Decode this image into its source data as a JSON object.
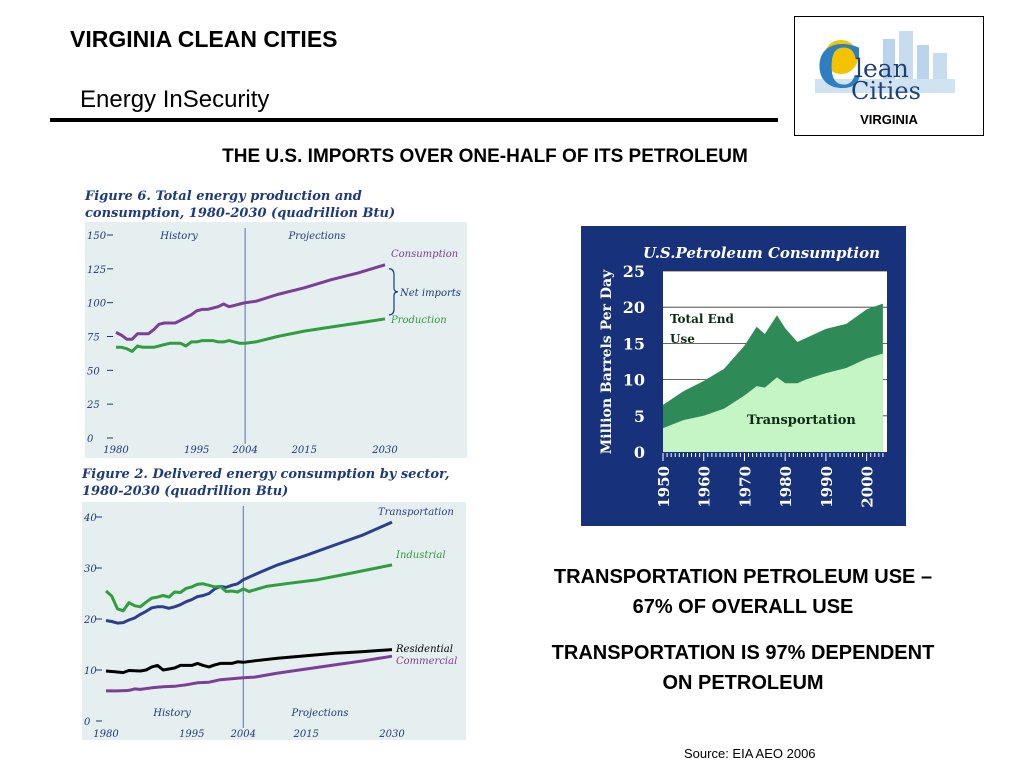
{
  "header": {
    "title": "VIRGINIA CLEAN CITIES",
    "subtitle": "Energy InSecurity"
  },
  "logo": {
    "wordmark_lines": [
      "lean",
      "Cities"
    ],
    "caption": "VIRGINIA"
  },
  "headline": "THE U.S. IMPORTS OVER ONE-HALF OF ITS PETROLEUM",
  "statements": [
    "TRANSPORTATION PETROLEUM USE – 67% OF OVERALL USE",
    "TRANSPORTATION IS 97% DEPENDENT ON PETROLEUM"
  ],
  "source": "Source: EIA AEO 2006",
  "chart_data": [
    {
      "type": "line",
      "title": "Figure 6. Total energy production and consumption, 1980-2030 (quadrillion Btu)",
      "ylim": [
        0,
        150
      ],
      "y_ticks": [
        0,
        25,
        50,
        75,
        100,
        125,
        150
      ],
      "x_ticks": [
        1980,
        1995,
        2004,
        2015,
        2030
      ],
      "divider_year": 2004,
      "region_labels": [
        "History",
        "Projections"
      ],
      "bracket_label": "Net imports",
      "series": [
        {
          "name": "Consumption",
          "color": "#7b3f98",
          "points": [
            [
              1980,
              78
            ],
            [
              1981,
              76
            ],
            [
              1982,
              73
            ],
            [
              1983,
              73
            ],
            [
              1984,
              77
            ],
            [
              1985,
              77
            ],
            [
              1986,
              77
            ],
            [
              1987,
              80
            ],
            [
              1988,
              84
            ],
            [
              1989,
              85
            ],
            [
              1990,
              85
            ],
            [
              1991,
              85
            ],
            [
              1992,
              87
            ],
            [
              1993,
              89
            ],
            [
              1994,
              91
            ],
            [
              1995,
              94
            ],
            [
              1996,
              95
            ],
            [
              1997,
              95
            ],
            [
              1998,
              96
            ],
            [
              1999,
              97
            ],
            [
              2000,
              99
            ],
            [
              2001,
              97
            ],
            [
              2002,
              98
            ],
            [
              2003,
              99
            ],
            [
              2004,
              100
            ],
            [
              2006,
              101
            ],
            [
              2010,
              106
            ],
            [
              2015,
              111
            ],
            [
              2020,
              117
            ],
            [
              2025,
              122
            ],
            [
              2030,
              128
            ]
          ]
        },
        {
          "name": "Production",
          "color": "#2e9e3e",
          "points": [
            [
              1980,
              67
            ],
            [
              1981,
              67
            ],
            [
              1982,
              66
            ],
            [
              1983,
              64
            ],
            [
              1984,
              68
            ],
            [
              1985,
              67
            ],
            [
              1986,
              67
            ],
            [
              1987,
              67
            ],
            [
              1988,
              68
            ],
            [
              1989,
              69
            ],
            [
              1990,
              70
            ],
            [
              1991,
              70
            ],
            [
              1992,
              70
            ],
            [
              1993,
              68
            ],
            [
              1994,
              71
            ],
            [
              1995,
              71
            ],
            [
              1996,
              72
            ],
            [
              1997,
              72
            ],
            [
              1998,
              72
            ],
            [
              1999,
              71
            ],
            [
              2000,
              71
            ],
            [
              2001,
              72
            ],
            [
              2002,
              71
            ],
            [
              2003,
              70
            ],
            [
              2004,
              70
            ],
            [
              2006,
              71
            ],
            [
              2010,
              75
            ],
            [
              2015,
              79
            ],
            [
              2020,
              82
            ],
            [
              2025,
              85
            ],
            [
              2030,
              88
            ]
          ]
        }
      ]
    },
    {
      "type": "line",
      "title": "Figure 2. Delivered energy consumption by sector, 1980-2030 (quadrillion Btu)",
      "ylim": [
        0,
        40
      ],
      "y_ticks": [
        0,
        10,
        20,
        30,
        40
      ],
      "x_ticks": [
        1980,
        1995,
        2004,
        2015,
        2030
      ],
      "divider_year": 2004,
      "region_labels": [
        "History",
        "Projections"
      ],
      "series": [
        {
          "name": "Transportation",
          "color": "#2d3e8e",
          "points": [
            [
              1980,
              19.7
            ],
            [
              1981,
              19.5
            ],
            [
              1982,
              19.2
            ],
            [
              1983,
              19.3
            ],
            [
              1984,
              19.8
            ],
            [
              1985,
              20.2
            ],
            [
              1986,
              20.9
            ],
            [
              1987,
              21.5
            ],
            [
              1988,
              22.2
            ],
            [
              1989,
              22.4
            ],
            [
              1990,
              22.4
            ],
            [
              1991,
              22.1
            ],
            [
              1992,
              22.4
            ],
            [
              1993,
              22.8
            ],
            [
              1994,
              23.4
            ],
            [
              1995,
              23.8
            ],
            [
              1996,
              24.4
            ],
            [
              1997,
              24.6
            ],
            [
              1998,
              25.0
            ],
            [
              1999,
              25.9
            ],
            [
              2000,
              26.4
            ],
            [
              2001,
              26.2
            ],
            [
              2002,
              26.6
            ],
            [
              2003,
              26.9
            ],
            [
              2004,
              27.7
            ],
            [
              2007,
              29.2
            ],
            [
              2010,
              30.6
            ],
            [
              2015,
              32.5
            ],
            [
              2020,
              34.5
            ],
            [
              2025,
              36.5
            ],
            [
              2030,
              39.0
            ]
          ]
        },
        {
          "name": "Industrial",
          "color": "#2e9e3e",
          "points": [
            [
              1980,
              25.5
            ],
            [
              1981,
              24.5
            ],
            [
              1982,
              22.0
            ],
            [
              1983,
              21.6
            ],
            [
              1984,
              23.2
            ],
            [
              1985,
              22.6
            ],
            [
              1986,
              22.4
            ],
            [
              1987,
              23.3
            ],
            [
              1988,
              24.1
            ],
            [
              1989,
              24.3
            ],
            [
              1990,
              24.6
            ],
            [
              1991,
              24.3
            ],
            [
              1992,
              25.3
            ],
            [
              1993,
              25.2
            ],
            [
              1994,
              26.0
            ],
            [
              1995,
              26.3
            ],
            [
              1996,
              26.8
            ],
            [
              1997,
              26.9
            ],
            [
              1998,
              26.6
            ],
            [
              1999,
              26.3
            ],
            [
              2000,
              26.4
            ],
            [
              2001,
              25.4
            ],
            [
              2002,
              25.5
            ],
            [
              2003,
              25.3
            ],
            [
              2004,
              25.9
            ],
            [
              2005,
              25.4
            ],
            [
              2008,
              26.4
            ],
            [
              2012,
              27.0
            ],
            [
              2017,
              27.7
            ],
            [
              2022,
              28.8
            ],
            [
              2030,
              30.6
            ]
          ]
        },
        {
          "name": "Residential",
          "color": "#000000",
          "points": [
            [
              1980,
              9.8
            ],
            [
              1982,
              9.6
            ],
            [
              1983,
              9.5
            ],
            [
              1984,
              9.9
            ],
            [
              1986,
              9.8
            ],
            [
              1987,
              10.0
            ],
            [
              1988,
              10.6
            ],
            [
              1989,
              10.9
            ],
            [
              1990,
              10.0
            ],
            [
              1992,
              10.4
            ],
            [
              1993,
              10.9
            ],
            [
              1995,
              10.9
            ],
            [
              1996,
              11.3
            ],
            [
              1997,
              10.9
            ],
            [
              1998,
              10.6
            ],
            [
              1999,
              11.0
            ],
            [
              2000,
              11.3
            ],
            [
              2002,
              11.3
            ],
            [
              2003,
              11.6
            ],
            [
              2004,
              11.5
            ],
            [
              2006,
              11.8
            ],
            [
              2010,
              12.3
            ],
            [
              2015,
              12.8
            ],
            [
              2020,
              13.3
            ],
            [
              2025,
              13.6
            ],
            [
              2030,
              14.0
            ]
          ]
        },
        {
          "name": "Commercial",
          "color": "#7b3f98",
          "points": [
            [
              1980,
              5.9
            ],
            [
              1982,
              5.9
            ],
            [
              1984,
              6.0
            ],
            [
              1985,
              6.3
            ],
            [
              1986,
              6.2
            ],
            [
              1988,
              6.5
            ],
            [
              1990,
              6.7
            ],
            [
              1992,
              6.8
            ],
            [
              1994,
              7.1
            ],
            [
              1996,
              7.5
            ],
            [
              1998,
              7.6
            ],
            [
              2000,
              8.1
            ],
            [
              2002,
              8.3
            ],
            [
              2004,
              8.5
            ],
            [
              2006,
              8.6
            ],
            [
              2010,
              9.4
            ],
            [
              2015,
              10.2
            ],
            [
              2020,
              11.0
            ],
            [
              2025,
              11.8
            ],
            [
              2030,
              12.7
            ]
          ]
        }
      ]
    },
    {
      "type": "area",
      "title": "U.S.Petroleum Consumption",
      "ylabel": "Million Barrels Per Day",
      "ylim": [
        0,
        25
      ],
      "y_ticks": [
        0,
        5,
        10,
        15,
        20,
        25
      ],
      "x_ticks": [
        1950,
        1960,
        1970,
        1980,
        1990,
        2000
      ],
      "xlim": [
        1950,
        2005
      ],
      "grid": true,
      "series": [
        {
          "name": "Total End Use",
          "color": "#2e8b57",
          "x": [
            1950,
            1955,
            1960,
            1965,
            1970,
            1973,
            1975,
            1978,
            1980,
            1983,
            1985,
            1990,
            1995,
            2000,
            2004
          ],
          "values": [
            6.5,
            8.4,
            9.8,
            11.5,
            14.7,
            17.3,
            16.3,
            18.9,
            17.1,
            15.2,
            15.7,
            17.0,
            17.7,
            19.7,
            20.5
          ]
        },
        {
          "name": "Transportation",
          "color": "#c5f5c5",
          "x": [
            1950,
            1955,
            1960,
            1965,
            1970,
            1973,
            1975,
            1978,
            1980,
            1983,
            1985,
            1990,
            1995,
            2000,
            2004
          ],
          "values": [
            3.3,
            4.4,
            5.0,
            6.0,
            7.8,
            9.1,
            8.9,
            10.3,
            9.5,
            9.5,
            10.0,
            10.9,
            11.6,
            12.9,
            13.6
          ]
        }
      ]
    }
  ]
}
